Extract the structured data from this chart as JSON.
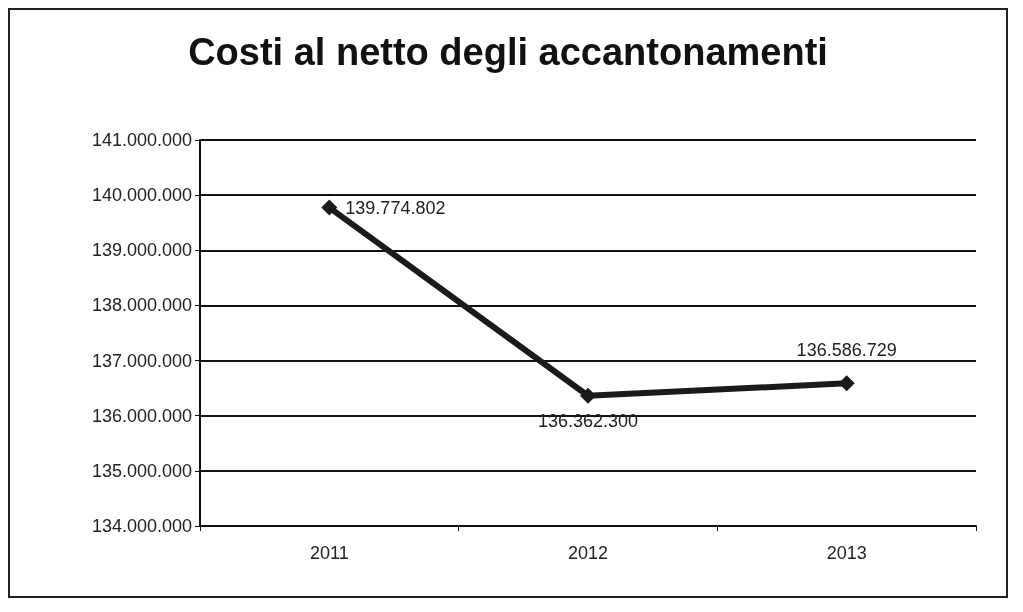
{
  "chart_data": {
    "type": "line",
    "title": "Costi al netto degli accantonamenti",
    "categories": [
      "2011",
      "2012",
      "2013"
    ],
    "series": [
      {
        "color": "#1a1a1a",
        "values": [
          139774802,
          136362300,
          136586729
        ],
        "value_labels": [
          "139.774.802",
          "136.362.300",
          "136.586.729"
        ]
      }
    ],
    "ylim": [
      134000000,
      141000000
    ],
    "yticks": [
      {
        "value": 134000000,
        "label": "134.000.000"
      },
      {
        "value": 135000000,
        "label": "135.000.000"
      },
      {
        "value": 136000000,
        "label": "136.000.000"
      },
      {
        "value": 137000000,
        "label": "137.000.000"
      },
      {
        "value": 138000000,
        "label": "138.000.000"
      },
      {
        "value": 139000000,
        "label": "139.000.000"
      },
      {
        "value": 140000000,
        "label": "140.000.000"
      },
      {
        "value": 141000000,
        "label": "141.000.000"
      }
    ],
    "grid": "y",
    "marker": "diamond",
    "line_style": "solid"
  }
}
